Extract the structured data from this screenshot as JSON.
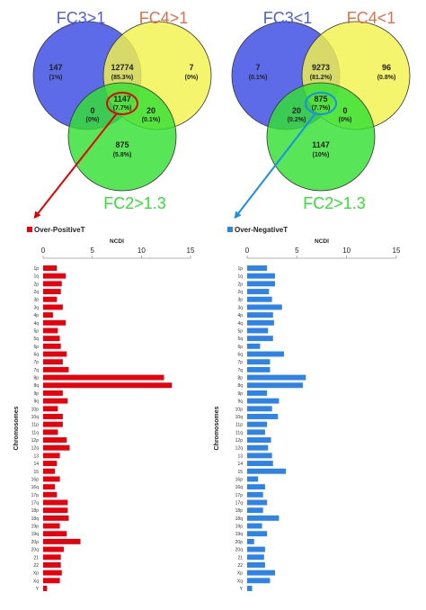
{
  "venns": [
    {
      "set_labels": [
        "FC3>1",
        "FC4>1",
        "FC2>1.3"
      ],
      "regions": {
        "only_a": {
          "count": "147",
          "pct": "(1%)"
        },
        "a_b": {
          "count": "12774",
          "pct": "(85.3%)"
        },
        "only_b": {
          "count": "7",
          "pct": "(0%)"
        },
        "a_c": {
          "count": "0",
          "pct": "(0%)"
        },
        "center": {
          "count": "1147",
          "pct": "(7.7%)"
        },
        "b_c": {
          "count": "20",
          "pct": "(0.1%)"
        },
        "only_c": {
          "count": "875",
          "pct": "(5.8%)"
        }
      },
      "colors": {
        "a": "#4d5be6",
        "b": "#f2f24d",
        "c": "#33e033",
        "label_a": "#4d5be6",
        "label_b": "#e0704a",
        "label_c": "#33e033",
        "arrow": "#e60000"
      }
    },
    {
      "set_labels": [
        "FC3<1",
        "FC4<1",
        "FC2>1.3"
      ],
      "regions": {
        "only_a": {
          "count": "7",
          "pct": "(0.1%)"
        },
        "a_b": {
          "count": "9273",
          "pct": "(81.2%)"
        },
        "only_b": {
          "count": "96",
          "pct": "(0.8%)"
        },
        "a_c": {
          "count": "20",
          "pct": "(0.2%)"
        },
        "center": {
          "count": "875",
          "pct": "(7.7%)"
        },
        "b_c": {
          "count": "0",
          "pct": "(0%)"
        },
        "only_c": {
          "count": "1147",
          "pct": "(10%)"
        }
      },
      "colors": {
        "a": "#4d5be6",
        "b": "#f2f24d",
        "c": "#33e033",
        "label_a": "#4d5be6",
        "label_b": "#e0704a",
        "label_c": "#33e033",
        "arrow": "#1a8fe6"
      }
    }
  ],
  "chart_data": [
    {
      "type": "bar",
      "orientation": "horizontal",
      "legend": "Over-PositiveT",
      "color": "#e8000d",
      "xlabel": "NCDI",
      "ylabel": "Chromosomes",
      "xlim": [
        0,
        15
      ],
      "xticks": [
        0,
        5,
        10,
        15
      ],
      "grid": false,
      "legend_position": "top-left",
      "categories": [
        "1p",
        "1q",
        "2p",
        "2q",
        "3p",
        "3q",
        "4p",
        "4q",
        "5p",
        "5q",
        "6p",
        "6q",
        "7p",
        "7q",
        "8p",
        "8q",
        "9p",
        "9q",
        "10p",
        "10q",
        "11p",
        "11q",
        "12p",
        "12q",
        "13",
        "14",
        "15",
        "16p",
        "16q",
        "17p",
        "17q",
        "18p",
        "18q",
        "19p",
        "19q",
        "20p",
        "20q",
        "21",
        "22",
        "Xp",
        "Xq",
        "Y"
      ],
      "values": [
        1.4,
        2.3,
        1.9,
        1.8,
        1.4,
        2.0,
        1.0,
        2.3,
        1.5,
        1.7,
        1.8,
        2.4,
        2.0,
        2.6,
        12.3,
        13.1,
        2.0,
        2.5,
        1.5,
        2.0,
        2.0,
        1.5,
        2.4,
        2.7,
        1.7,
        1.4,
        1.2,
        1.7,
        1.2,
        1.4,
        2.5,
        2.5,
        2.6,
        1.7,
        2.4,
        3.8,
        2.1,
        1.8,
        1.8,
        1.9,
        1.7,
        0.4
      ]
    },
    {
      "type": "bar",
      "orientation": "horizontal",
      "legend": "Over-NegativeT",
      "color": "#2f82e6",
      "xlabel": "NCDI",
      "ylabel": "Chromosomes",
      "xlim": [
        0,
        15
      ],
      "xticks": [
        0,
        5,
        10,
        15
      ],
      "grid": false,
      "legend_position": "top-left",
      "categories": [
        "1p",
        "1q",
        "2p",
        "2q",
        "3p",
        "3q",
        "4p",
        "4q",
        "5p",
        "5q",
        "6p",
        "6q",
        "7p",
        "7q",
        "8p",
        "8q",
        "9p",
        "9q",
        "10p",
        "10q",
        "11p",
        "11q",
        "12p",
        "12q",
        "13",
        "14",
        "15",
        "16p",
        "16q",
        "17p",
        "17q",
        "18p",
        "18q",
        "19p",
        "19q",
        "20p",
        "20q",
        "21",
        "22",
        "Xp",
        "Xq",
        "Y"
      ],
      "values": [
        2.0,
        2.8,
        2.8,
        2.2,
        2.5,
        3.5,
        2.6,
        2.7,
        2.1,
        2.6,
        1.3,
        3.7,
        2.3,
        2.3,
        5.9,
        5.6,
        2.0,
        3.2,
        2.5,
        3.1,
        2.0,
        1.8,
        2.4,
        2.1,
        2.5,
        2.6,
        3.9,
        1.1,
        1.8,
        1.6,
        2.0,
        1.6,
        3.2,
        1.5,
        2.0,
        0.7,
        1.8,
        1.7,
        1.8,
        2.8,
        2.3,
        0.5
      ]
    }
  ]
}
